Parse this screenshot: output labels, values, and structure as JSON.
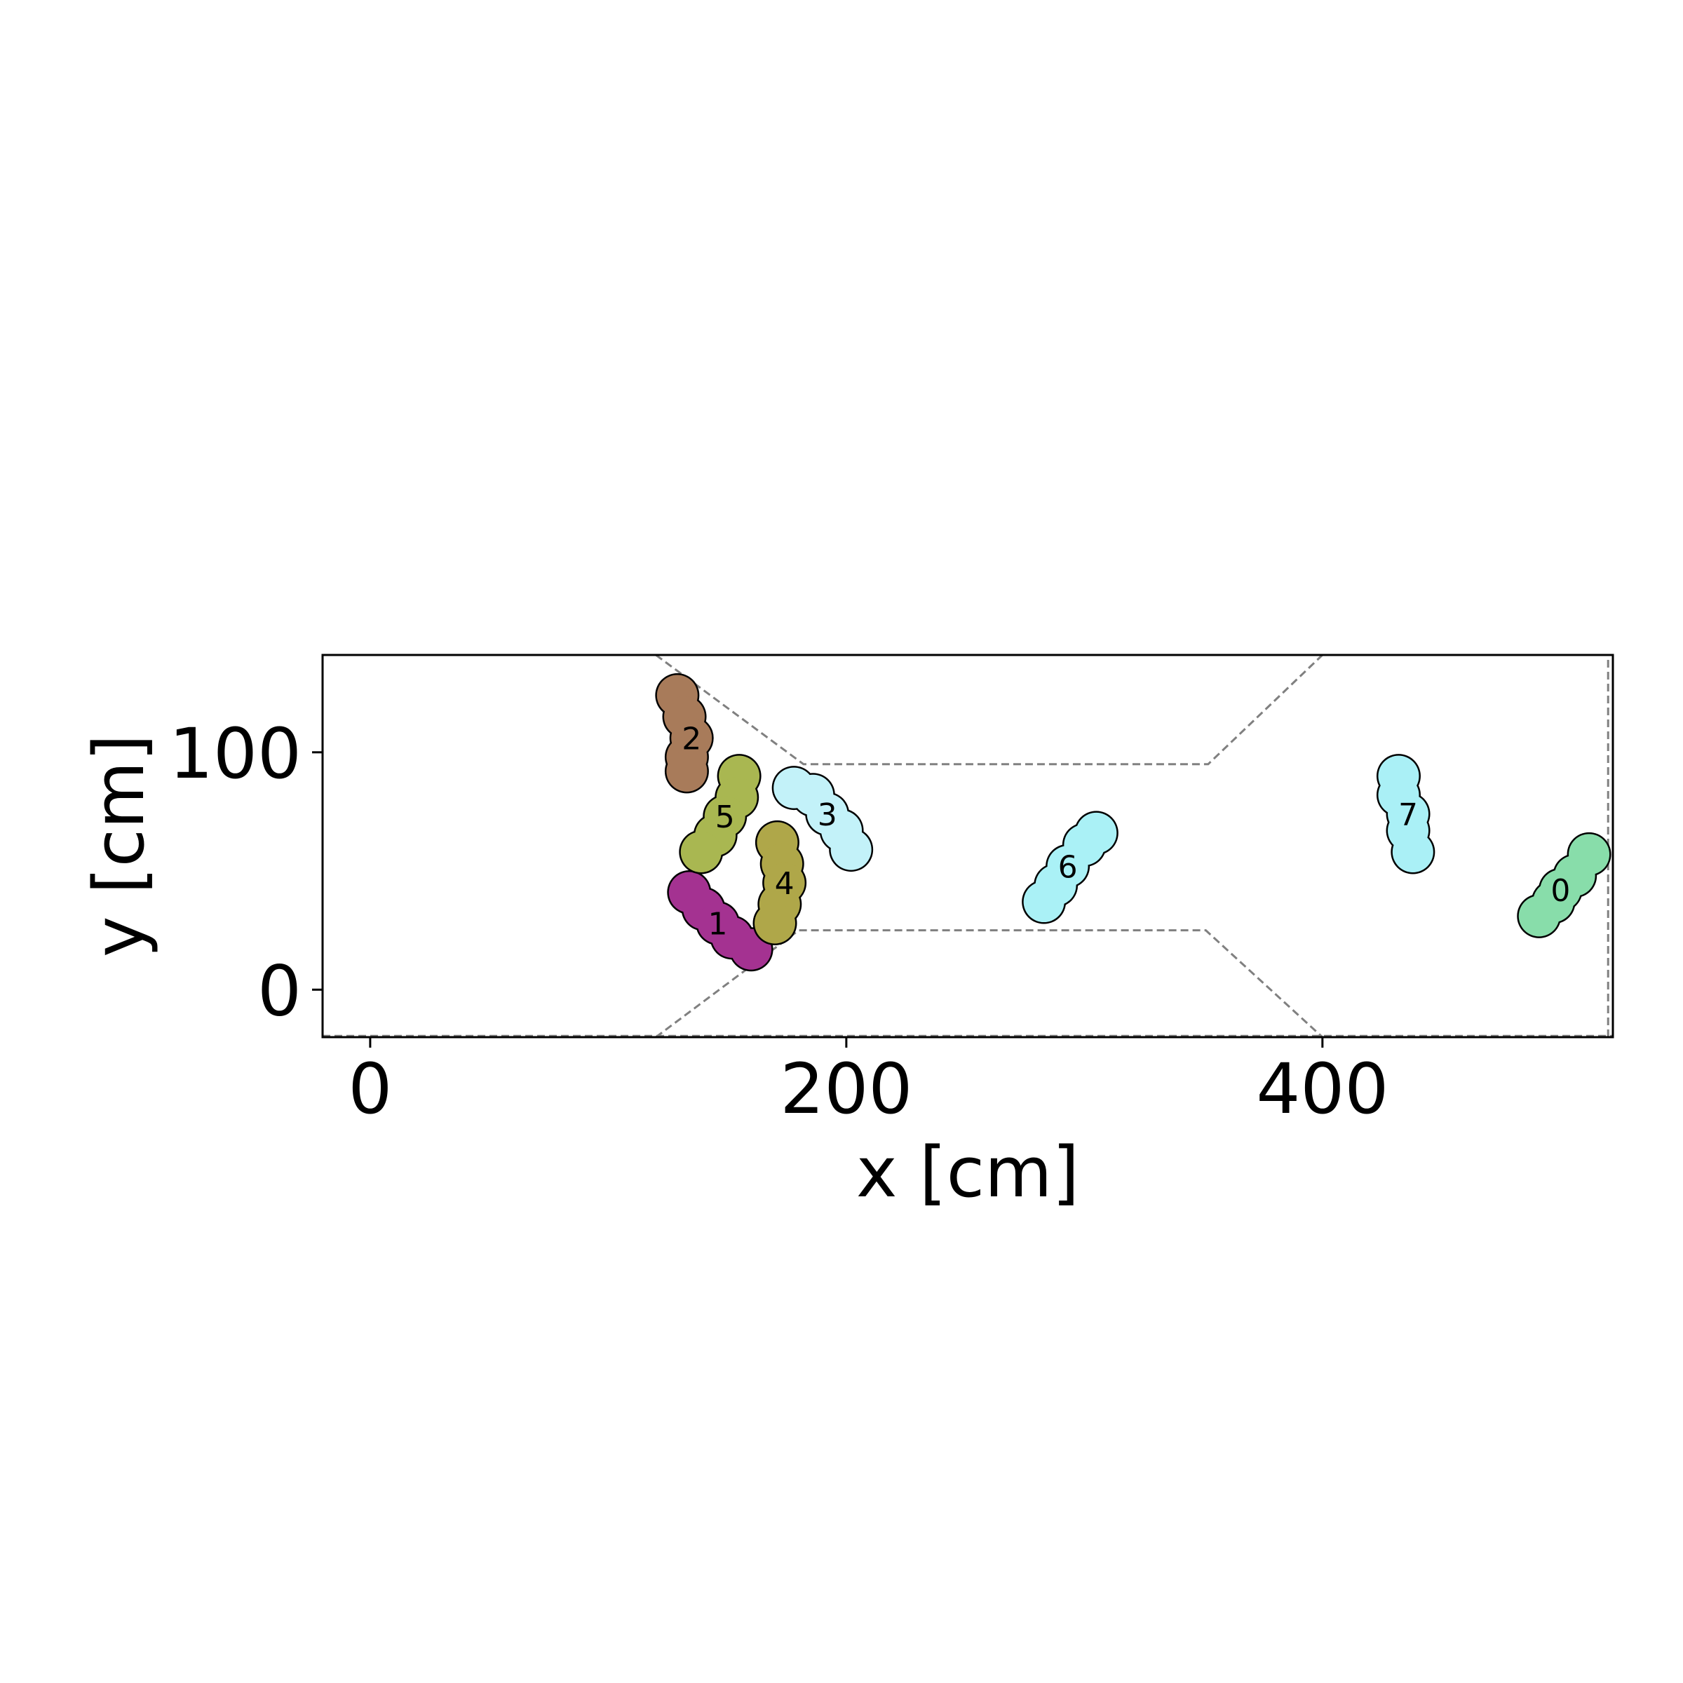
{
  "chart_data": {
    "type": "scatter",
    "title": "",
    "xlabel": "x [cm]",
    "ylabel": "y [cm]",
    "xlim": [
      -20,
      522
    ],
    "ylim": [
      -20,
      141
    ],
    "xticks": [
      0,
      200,
      400
    ],
    "yticks": [
      0,
      100
    ],
    "grid": false,
    "legend": "none",
    "walls": [
      {
        "name": "upper-wall",
        "points": [
          [
            120,
            141
          ],
          [
            182,
            95
          ],
          [
            352,
            95
          ],
          [
            400,
            141
          ]
        ]
      },
      {
        "name": "lower-wall",
        "points": [
          [
            120,
            -20
          ],
          [
            180,
            25
          ],
          [
            351,
            25
          ],
          [
            400,
            -20
          ]
        ]
      },
      {
        "name": "bottom-border",
        "points": [
          [
            -20,
            -19.5
          ],
          [
            522,
            -19.5
          ]
        ]
      },
      {
        "name": "right-border",
        "points": [
          [
            520,
            -20
          ],
          [
            520,
            141
          ]
        ]
      }
    ],
    "pedestrians": [
      {
        "id": "0",
        "color": "#88ddaa",
        "points": [
          [
            512,
            57
          ],
          [
            506,
            48
          ],
          [
            500,
            42
          ],
          [
            497,
            37
          ],
          [
            491,
            31
          ]
        ]
      },
      {
        "id": "1",
        "color": "#a43291",
        "points": [
          [
            134,
            41
          ],
          [
            140,
            34
          ],
          [
            146,
            28
          ],
          [
            152,
            22
          ],
          [
            160,
            17
          ]
        ]
      },
      {
        "id": "2",
        "color": "#a87b5a",
        "points": [
          [
            129,
            124
          ],
          [
            132,
            115
          ],
          [
            135,
            106
          ],
          [
            133,
            98
          ],
          [
            133,
            92
          ]
        ]
      },
      {
        "id": "3",
        "color": "#c3f2f9",
        "points": [
          [
            178,
            85
          ],
          [
            186,
            82
          ],
          [
            192,
            74
          ],
          [
            198,
            67
          ],
          [
            202,
            59
          ]
        ]
      },
      {
        "id": "4",
        "color": "#afa749",
        "points": [
          [
            171,
            62
          ],
          [
            173,
            53
          ],
          [
            174,
            45
          ],
          [
            172,
            36
          ],
          [
            170,
            28
          ]
        ]
      },
      {
        "id": "5",
        "color": "#a9b751",
        "points": [
          [
            155,
            90
          ],
          [
            154,
            81
          ],
          [
            149,
            73
          ],
          [
            145,
            65
          ],
          [
            139,
            58
          ]
        ]
      },
      {
        "id": "6",
        "color": "#aaf1f6",
        "points": [
          [
            283,
            37
          ],
          [
            288,
            44
          ],
          [
            293,
            52
          ],
          [
            300,
            61
          ],
          [
            305,
            66
          ]
        ]
      },
      {
        "id": "7",
        "color": "#aaf0f6",
        "points": [
          [
            432,
            90
          ],
          [
            432,
            82
          ],
          [
            436,
            74
          ],
          [
            436,
            67
          ],
          [
            438,
            58
          ]
        ]
      }
    ]
  }
}
